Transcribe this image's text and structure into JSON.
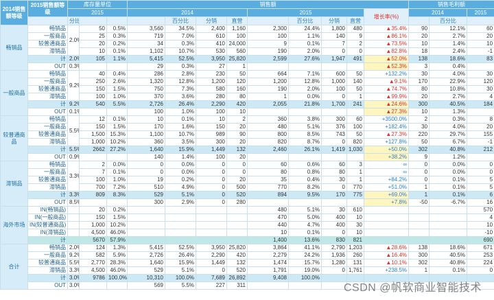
{
  "header": {
    "col_group": "2014销售额等级",
    "col_sub": "2015销售额等级",
    "inventory": "库存量单位",
    "sales": "销售额",
    "margin": "销售毛利额",
    "years": {
      "inventory": "2015",
      "sales_2014": "2014",
      "sales_2015": "2015",
      "margin_2014": "2014",
      "margin_2015": "2015"
    },
    "columns": {
      "share": "分比",
      "pct_2014": "百分比",
      "dist_2014": "分销",
      "direct_2014": "直营",
      "pct_2015": "百分比",
      "dist_2015": "分销",
      "direct_2015": "直营",
      "growth": "增长率(%)",
      "margin_pct": "百分比"
    }
  },
  "table": {
    "groups": [
      {
        "label": "畅销品",
        "share": "2.0%",
        "rows": [
          [
            "畅销品",
            null,
            "50",
            "0.5%",
            "3,560",
            "34.5%",
            "2,400",
            "1,160",
            "2,300",
            "24.4%",
            "1,800",
            "480",
            "▲35.4%",
            "90",
            "12.1%",
            "60"
          ],
          [
            "一般商品",
            null,
            "25",
            "0.3%",
            "719",
            "7.0%",
            "610",
            "100",
            "100",
            "1.1%",
            "140",
            "9",
            "▲86.1%",
            "20",
            "2.7%",
            "20"
          ],
          [
            "较普通商品",
            null,
            "20",
            "0.2%",
            "34",
            "0.3%",
            "410",
            "24,000",
            "9",
            "0.1%",
            "7",
            "2",
            "▲73.5%",
            "10",
            "1.4%",
            "10"
          ],
          [
            "滞销品",
            null,
            "10",
            "0.1%",
            "1,102",
            "10.7%",
            "530",
            "560",
            "190",
            "2.0%",
            "0",
            "0",
            "▲82.8%",
            "18",
            "2.4%",
            "-1"
          ],
          [
            "计",
            "2.0%",
            "105",
            "1.1%",
            "5,415",
            "52.5%",
            "3,950",
            "25,820",
            "2,599",
            "27.6%",
            "1,947",
            "491",
            "▲52.0%",
            "138",
            "18.6%",
            "83"
          ],
          [
            "OUT",
            "0.3%",
            null,
            null,
            "29",
            "0.3%",
            "27",
            "1",
            null,
            null,
            null,
            null,
            "▲52.3%",
            "3",
            "0.4%",
            null
          ]
        ]
      },
      {
        "label": "一般商品",
        "share": "9.2%",
        "rows": [
          [
            "畅销品",
            null,
            "40",
            "0.4%",
            "286",
            "2.8%",
            "230",
            "50",
            "664",
            "7.1%",
            "600",
            "50",
            "+132.2%",
            "30",
            "4.0%",
            "30"
          ],
          [
            "一般商品",
            null,
            "250",
            "2.6%",
            "1,320",
            "12.8%",
            "1,200",
            "120",
            "1,200",
            "12.8%",
            "1,000",
            "140",
            "▲9.1%",
            "170",
            "22.9%",
            "120"
          ],
          [
            "较普通商品",
            null,
            "150",
            "1.5%",
            "750",
            "7.3%",
            "580",
            "160",
            "190",
            "2.0%",
            "100",
            "50",
            "▲74.7%",
            "80",
            "10.8%",
            "30"
          ],
          [
            "滞销品",
            null,
            "100",
            "1.0%",
            "370",
            "3.6%",
            "280",
            "80",
            "1",
            "0.0%",
            "0",
            "1",
            "▲99.9%",
            "20",
            "2.7%",
            "4"
          ],
          [
            "计",
            "9.2%",
            "540",
            "5.5%",
            "2,726",
            "26.4%",
            "2,290",
            "420",
            "2,055",
            "21.8%",
            "1,700",
            "241",
            "▲24.6%",
            "300",
            "40.5%",
            "184"
          ],
          [
            "OUT",
            "0.1%",
            null,
            null,
            "100",
            "1.0%",
            "100",
            "10",
            null,
            null,
            null,
            null,
            "▲27.3%",
            "10",
            "1.3%",
            null
          ]
        ]
      },
      {
        "label": "较普通商品",
        "share": "5.5%",
        "rows": [
          [
            "畅销品",
            null,
            "12",
            "0.1%",
            "10",
            "0.1%",
            "10",
            "2",
            "360",
            "3.8%",
            "300",
            "60",
            "+3500.0%",
            "2",
            "0.3%",
            "8"
          ],
          [
            "一般商品",
            null,
            "150",
            "1.5%",
            "170",
            "1.6%",
            "150",
            "20",
            "480",
            "5.1%",
            "376",
            "100",
            "+182.4%",
            "30",
            "4.0%",
            "20"
          ],
          [
            "较普通商品",
            null,
            "1,500",
            "15.3%",
            "1,100",
            "10.7%",
            "989",
            "90",
            "800",
            "8.5%",
            "743",
            "50",
            "▲27.3%",
            "220",
            "29.7%",
            "155"
          ],
          [
            "滞销品",
            null,
            "1,000",
            "10.2%",
            "360",
            "3.5%",
            "300",
            "20",
            "820",
            "8.7%",
            "0",
            "820",
            "+127.8%",
            "50",
            "6.7%",
            "-1"
          ],
          [
            "计",
            "5.5%",
            "2662",
            "27.2%",
            "1,640",
            "15.9%",
            "1,449",
            "132",
            "2,460",
            "26.1%",
            "1,419",
            "1,030",
            "+50.0%",
            "302",
            "40.8%",
            "212"
          ],
          [
            "OUT",
            "0.9%",
            null,
            null,
            "140",
            "1.4%",
            "100",
            "20",
            null,
            null,
            null,
            null,
            "+38.2%",
            "9",
            "1.2%",
            null
          ]
        ]
      },
      {
        "label": "滞销品",
        "share": "3.3%",
        "rows": [
          [
            "畅销品",
            null,
            "2",
            "0.0%",
            "0",
            "0.0%",
            "0",
            "0",
            "60",
            "0.6%",
            "60",
            "3",
            "∞",
            "0",
            "0.0%",
            "0"
          ],
          [
            "一般商品",
            null,
            "7",
            "0.1%",
            "0",
            "0.0%",
            "0",
            "0",
            "80",
            "0.8%",
            "80",
            "1",
            "∞",
            "0",
            "0.0%",
            "0"
          ],
          [
            "较普通商品",
            null,
            "100",
            "1.0%",
            "19",
            "0.2%",
            "0",
            "20",
            "35",
            "0.4%",
            "30",
            "1",
            "+84.2%",
            "0",
            "0.1%",
            "5"
          ],
          [
            "滞销品",
            null,
            "700",
            "7.2%",
            "510",
            "4.9%",
            "0",
            "500",
            "770",
            "8.2%",
            "0",
            "770",
            "+51.0%",
            "1",
            "0.1%",
            "5"
          ],
          [
            "计",
            "3.3%",
            "809",
            "8.3%",
            "529",
            "5.1%",
            "0",
            "520",
            "894",
            "9.5%",
            "170",
            "775",
            "+69.0%",
            "1",
            "0.1%",
            "6"
          ],
          [
            "OUT",
            "8.5%",
            null,
            null,
            "300",
            "2.9%",
            "0",
            "280",
            null,
            null,
            null,
            null,
            "+7.8%",
            "-50",
            "-6.7%",
            "16"
          ]
        ]
      },
      {
        "label": "海外市场",
        "rows": [
          [
            "IN(畅销品)",
            null,
            "20",
            "0.2%",
            null,
            null,
            null,
            null,
            "480",
            "5.1%",
            "30",
            "610",
            null,
            null,
            null,
            "570"
          ],
          [
            "IN(一般商品)",
            null,
            "150",
            "1.5%",
            null,
            null,
            null,
            null,
            "470",
            "5.0%",
            "400",
            "10",
            null,
            null,
            null,
            "4"
          ],
          [
            "IN(较普通商品)",
            null,
            "1,000",
            "10.2%",
            null,
            null,
            null,
            null,
            "440",
            "4.7%",
            "400",
            "30",
            null,
            null,
            null,
            "10"
          ],
          [
            "IN(滞销品)",
            null,
            "4,500",
            "46.0%",
            null,
            null,
            null,
            null,
            "10",
            "0.1%",
            "0",
            "10",
            null,
            null,
            null,
            "-10"
          ],
          [
            "计",
            null,
            "5670",
            "57.9%",
            null,
            null,
            null,
            null,
            "1,400",
            "13.6%",
            "830",
            "821",
            null,
            null,
            null,
            "690"
          ]
        ]
      },
      {
        "label": "合计",
        "rows": [
          [
            "畅销品",
            "2.0%",
            "124",
            "1.3%",
            "5,415",
            "52.5%",
            "3,950",
            "25,820",
            "3,864",
            "41.1%",
            "2,790",
            "1,203",
            "▲28.6%",
            "138",
            "18.6%",
            "671"
          ],
          [
            "一般商品",
            "9.2%",
            "582",
            "5.9%",
            "2,726",
            "26.4%",
            "2,290",
            "420",
            "2,279",
            "24.2%",
            "1,936",
            "260",
            "▲16.4%",
            "300",
            "40.5%",
            "253"
          ],
          [
            "较普通商品",
            "5.5%",
            "2,770",
            "28.3%",
            "1,640",
            "15.9%",
            "1,449",
            "132",
            "1,474",
            "15.7%",
            "1,280",
            "131",
            "▲10.1%",
            "302",
            "40.8%",
            "224"
          ],
          [
            "滞销品",
            "3.3%",
            "4,500",
            "46.0%",
            "529",
            "5.1%",
            "0",
            "520",
            "1,791",
            "19.0%",
            "0",
            "1,761",
            "+238.5%",
            "1",
            "0.1%",
            "0"
          ],
          [
            "计",
            "3.0%",
            "9786",
            "100.0%",
            "10,310",
            "100.0%",
            "7,689",
            "26,892",
            "9,408",
            "100.0%",
            null,
            null,
            null,
            null,
            null,
            null
          ],
          [
            "OUT",
            "3.0%",
            null,
            null,
            "569",
            "5.5%",
            "227",
            "311",
            null,
            null,
            null,
            null,
            null,
            null,
            null,
            null
          ]
        ]
      }
    ]
  },
  "watermark": "CSDN @帆软商业智能技术"
}
